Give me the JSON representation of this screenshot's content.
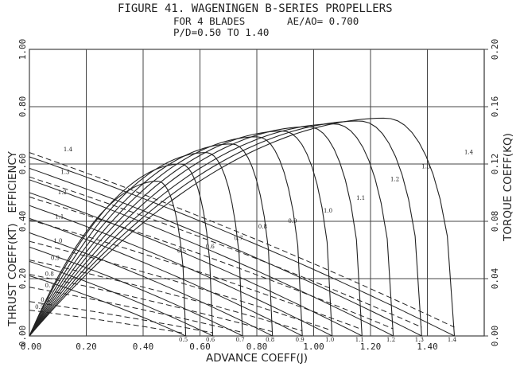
{
  "header": {
    "title": "FIGURE 41. WAGENINGEN B-SERIES PROPELLERS",
    "line2_left": "FOR 4 BLADES",
    "line2_right": "AE/AO= 0.700",
    "line3": "P/D=0.50 TO 1.40"
  },
  "chart_data": {
    "type": "line",
    "title": "FIGURE 41. WAGENINGEN B-SERIES PROPELLERS FOR 4 BLADES AE/AO= 0.700 P/D=0.50 TO 1.40",
    "xlabel": "ADVANCE COEFF(J)",
    "ylabel_left": "THRUST COEFF(KT)   EFFICIENCY",
    "ylabel_right": "TORQUE COEFF(KQ)",
    "xlim": [
      0,
      1.6
    ],
    "ylim_left": [
      0,
      1.0
    ],
    "ylim_right": [
      0,
      0.2
    ],
    "x_ticks": [
      "0.00",
      "0.20",
      "0.40",
      "0.60",
      "0.80",
      "1.00",
      "1.20",
      "1.40"
    ],
    "y_ticks_left": [
      "0.00",
      "0.20",
      "0.40",
      "0.60",
      "0.80",
      "1.00"
    ],
    "y_ticks_right": [
      "0.00",
      "0.04",
      "0.08",
      "0.12",
      "0.16",
      "0.20"
    ],
    "grid": true,
    "line_styles": {
      "KT": "solid",
      "KQ": "dashed",
      "efficiency": "solid"
    },
    "pitch_ratios": [
      "0.5",
      "0.6",
      "0.7",
      "0.8",
      "0.9",
      "1.0",
      "1.1",
      "1.2",
      "1.3",
      "1.4"
    ],
    "kt_at_j0": [
      0.21,
      0.26,
      0.31,
      0.36,
      0.41,
      0.455,
      0.5,
      0.545,
      0.585,
      0.625
    ],
    "kt_zero_j": [
      0.55,
      0.645,
      0.75,
      0.855,
      0.96,
      1.065,
      1.17,
      1.28,
      1.38,
      1.495
    ],
    "kq_at_j0": [
      0.018,
      0.024,
      0.034,
      0.043,
      0.053,
      0.066,
      0.081,
      0.097,
      0.111,
      0.128
    ],
    "kq_zero_j": [
      0.6,
      0.7,
      0.8,
      0.91,
      1.02,
      1.12,
      1.23,
      1.34,
      1.45,
      1.56
    ],
    "efficiency_peak": [
      {
        "pd": "0.5",
        "j": 0.45,
        "eta": 0.54
      },
      {
        "pd": "0.6",
        "j": 0.53,
        "eta": 0.6
      },
      {
        "pd": "0.7",
        "j": 0.62,
        "eta": 0.64
      },
      {
        "pd": "0.8",
        "j": 0.71,
        "eta": 0.67
      },
      {
        "pd": "0.9",
        "j": 0.8,
        "eta": 0.695
      },
      {
        "pd": "1.0",
        "j": 0.89,
        "eta": 0.715
      },
      {
        "pd": "1.1",
        "j": 0.98,
        "eta": 0.73
      },
      {
        "pd": "1.2",
        "j": 1.07,
        "eta": 0.74
      },
      {
        "pd": "1.3",
        "j": 1.16,
        "eta": 0.75
      },
      {
        "pd": "1.4",
        "j": 1.25,
        "eta": 0.76
      }
    ],
    "bottom_labels": [
      "0.5",
      "0.6",
      "0.7",
      "0.8",
      "0.9",
      "1.0",
      "1.1",
      "1.2",
      "1.3",
      "1.4"
    ],
    "efficiency_labels": [
      {
        "text": "0.5",
        "j": 0.52,
        "v": 0.29
      },
      {
        "text": "0.6",
        "j": 0.62,
        "v": 0.305
      },
      {
        "text": "0.7",
        "j": 0.72,
        "v": 0.335
      },
      {
        "text": "0.8",
        "j": 0.805,
        "v": 0.375
      },
      {
        "text": "0.9",
        "j": 0.91,
        "v": 0.395
      },
      {
        "text": "1.0",
        "j": 1.035,
        "v": 0.43
      },
      {
        "text": "1.1",
        "j": 1.15,
        "v": 0.475
      },
      {
        "text": "1.2",
        "j": 1.27,
        "v": 0.54
      },
      {
        "text": "1.3",
        "j": 1.38,
        "v": 0.585
      },
      {
        "text": "1.4",
        "j": 1.53,
        "v": 0.635
      }
    ],
    "kq_labels": [
      {
        "text": "1.4",
        "j": 0.12,
        "v": 0.645
      },
      {
        "text": "1.3",
        "j": 0.11,
        "v": 0.565
      },
      {
        "text": "1.2",
        "j": 0.1,
        "v": 0.495
      },
      {
        "text": "1.1",
        "j": 0.09,
        "v": 0.41
      },
      {
        "text": "1.0",
        "j": 0.085,
        "v": 0.325
      },
      {
        "text": "0.9",
        "j": 0.075,
        "v": 0.265
      },
      {
        "text": "0.8",
        "j": 0.055,
        "v": 0.21
      },
      {
        "text": "0.7",
        "j": 0.055,
        "v": 0.17
      },
      {
        "text": "0.6",
        "j": 0.04,
        "v": 0.12
      },
      {
        "text": "0.5",
        "j": 0.02,
        "v": 0.095
      }
    ]
  }
}
